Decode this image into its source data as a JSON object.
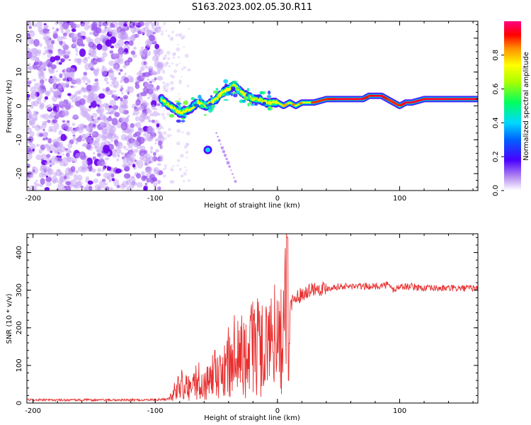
{
  "chart_data": [
    {
      "type": "heatmap",
      "title": "S163.2023.002.05.30.R11",
      "xlabel": "Height of straight line (km)",
      "ylabel": "Frequency (Hz)",
      "xlim": [
        -205,
        164
      ],
      "ylim": [
        -25,
        25
      ],
      "x_ticks": [
        -200,
        -100,
        0,
        100
      ],
      "y_ticks": [
        -20,
        -10,
        0,
        10,
        20
      ],
      "noise_region_x": [
        -205,
        -95
      ],
      "ridge": {
        "x": [
          -95,
          -88,
          -80,
          -72,
          -65,
          -58,
          -50,
          -45,
          -40,
          -35,
          -30,
          -25,
          -20,
          -15,
          -10,
          -5,
          0,
          5,
          10,
          15,
          20,
          30,
          40,
          50,
          60,
          70,
          75,
          80,
          85,
          90,
          95,
          100,
          105,
          110,
          120,
          130,
          140,
          150,
          164
        ],
        "freq": [
          2,
          0,
          -2,
          -1,
          1,
          0,
          2,
          4,
          5,
          6,
          4,
          3,
          2,
          2,
          1,
          1,
          1,
          0,
          1,
          0,
          1,
          1,
          2,
          2,
          2,
          2,
          3,
          3,
          3,
          2,
          1,
          0,
          1,
          1,
          2,
          2,
          2,
          2,
          2
        ],
        "amplitude": [
          0.5,
          0.4,
          0.35,
          0.45,
          0.4,
          0.4,
          0.45,
          0.55,
          0.55,
          0.5,
          0.55,
          0.55,
          0.6,
          0.6,
          0.6,
          0.7,
          0.7,
          0.75,
          0.8,
          0.8,
          0.8,
          0.85,
          0.85,
          0.9,
          0.9,
          0.9,
          0.85,
          0.9,
          0.9,
          0.85,
          0.85,
          0.85,
          0.9,
          0.9,
          0.92,
          0.92,
          0.92,
          0.9,
          0.9
        ]
      },
      "isolated_blobs": [
        {
          "x": -57,
          "freq": -13,
          "amplitude": 0.35
        }
      ],
      "colorbar": {
        "label": "Normalized spectral amplitude",
        "range": [
          0.0,
          1.0
        ],
        "ticks": [
          "0.0",
          "0.2",
          "0.4",
          "0.6",
          "0.8"
        ],
        "colors": [
          "#ffffff",
          "#8a2be2",
          "#0000ff",
          "#00ccff",
          "#00ff66",
          "#88ff00",
          "#ffff00",
          "#ff8800",
          "#ff0000",
          "#ff0066"
        ]
      }
    },
    {
      "type": "line",
      "xlabel": "Height of straight line (km)",
      "ylabel": "SNR (10 * v/v)",
      "xlim": [
        -205,
        164
      ],
      "ylim": [
        0,
        450
      ],
      "x_ticks": [
        -200,
        -100,
        0,
        100
      ],
      "y_ticks": [
        0,
        100,
        200,
        300,
        400
      ],
      "series": [
        {
          "name": "SNR",
          "color": "#e83030",
          "x": [
            -205,
            -190,
            -170,
            -150,
            -130,
            -110,
            -90,
            -85,
            -80,
            -75,
            -70,
            -65,
            -60,
            -55,
            -50,
            -45,
            -40,
            -35,
            -30,
            -25,
            -20,
            -15,
            -10,
            -5,
            0,
            3,
            5,
            7,
            8,
            9,
            10,
            12,
            15,
            20,
            25,
            30,
            40,
            50,
            60,
            70,
            80,
            90,
            95,
            100,
            110,
            120,
            130,
            140,
            150,
            164
          ],
          "values": [
            8,
            8,
            8,
            8,
            8,
            8,
            10,
            30,
            55,
            45,
            60,
            70,
            65,
            90,
            80,
            80,
            120,
            150,
            160,
            120,
            170,
            160,
            150,
            180,
            190,
            220,
            200,
            260,
            420,
            60,
            250,
            270,
            280,
            290,
            300,
            305,
            305,
            310,
            310,
            310,
            310,
            315,
            300,
            310,
            310,
            305,
            305,
            305,
            305,
            305
          ]
        }
      ]
    }
  ]
}
